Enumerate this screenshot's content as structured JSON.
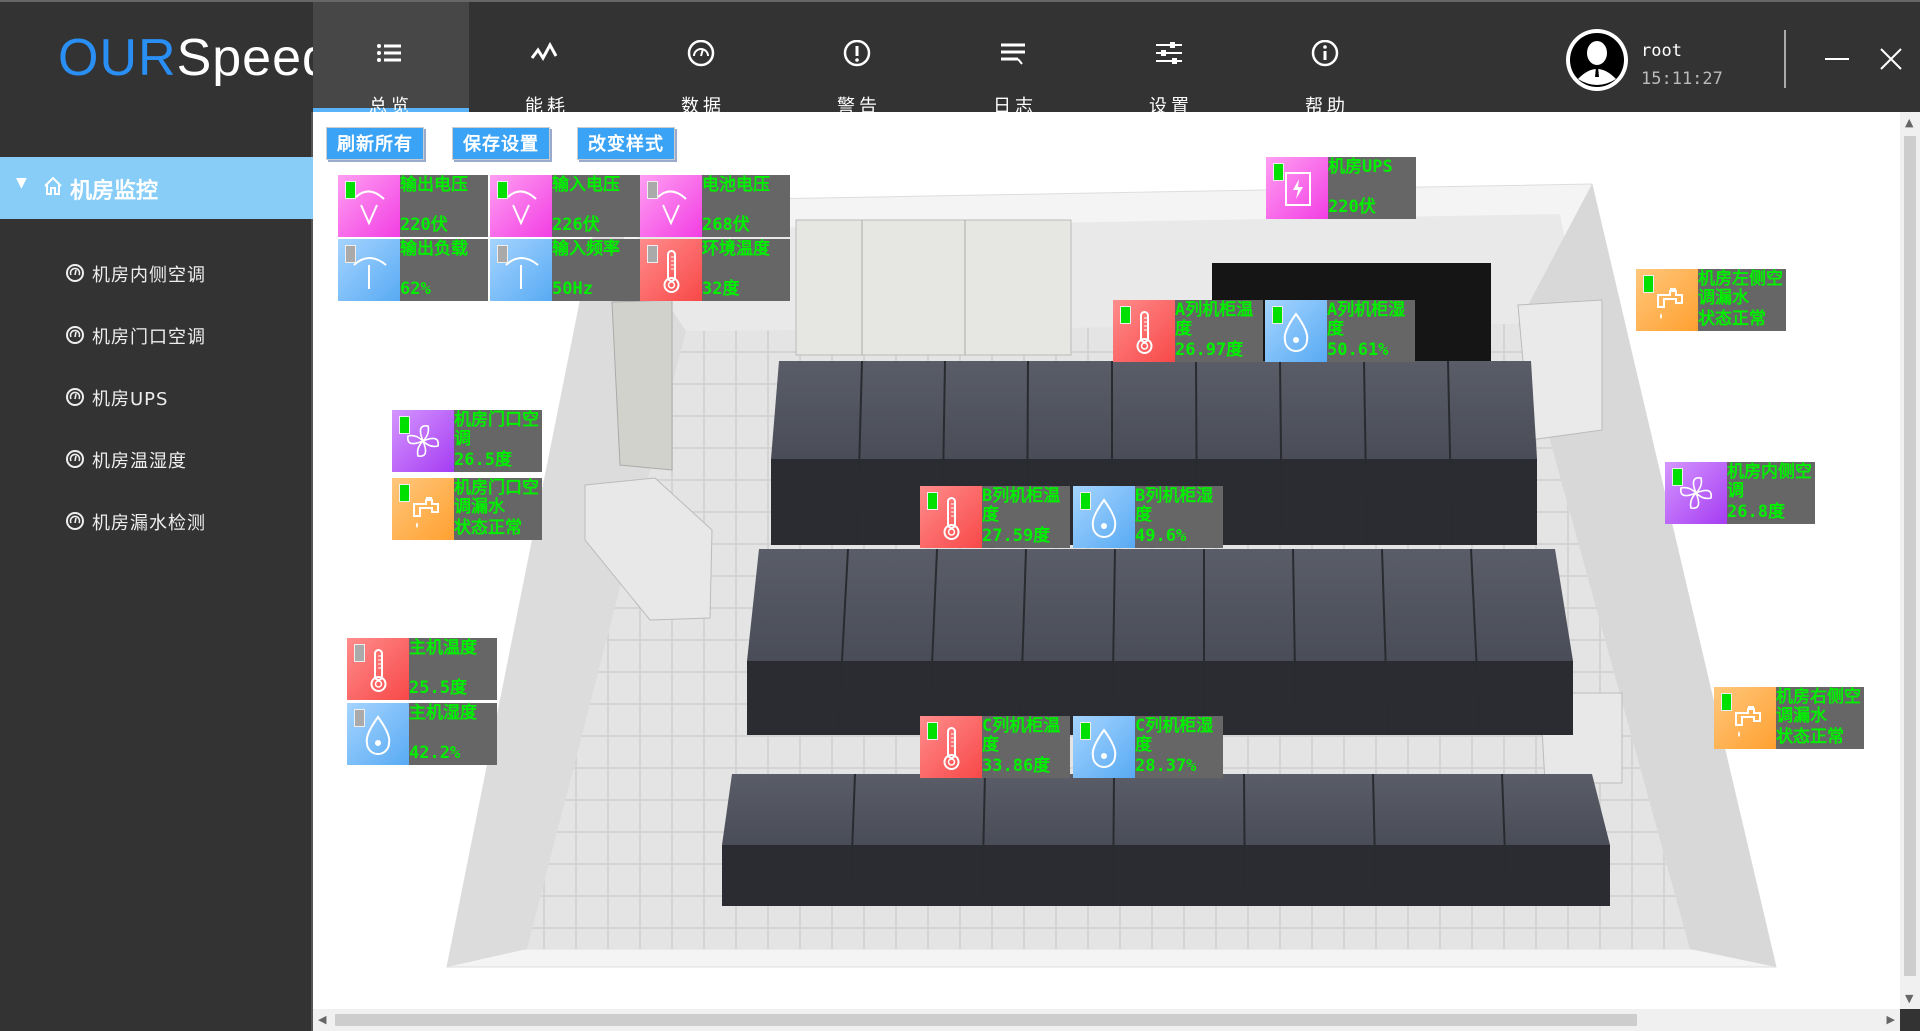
{
  "header": {
    "logo_part1": "OUR",
    "logo_part2": "Speed",
    "tabs": [
      {
        "label": "总览",
        "icon": "list-icon",
        "active": true
      },
      {
        "label": "能耗",
        "icon": "pulse-icon"
      },
      {
        "label": "数据",
        "icon": "gauge-icon"
      },
      {
        "label": "警告",
        "icon": "alert-icon"
      },
      {
        "label": "日志",
        "icon": "log-icon"
      },
      {
        "label": "设置",
        "icon": "sliders-icon"
      },
      {
        "label": "帮助",
        "icon": "info-icon"
      }
    ],
    "user": {
      "name": "root",
      "time": "15:11:27"
    }
  },
  "sidebar": {
    "group": "机房监控",
    "items": [
      {
        "label": "机房内侧空调"
      },
      {
        "label": "机房门口空调"
      },
      {
        "label": "机房UPS"
      },
      {
        "label": "机房温湿度"
      },
      {
        "label": "机房漏水检测"
      }
    ]
  },
  "toolbar": {
    "refresh_label": "刷新所有",
    "save_label": "保存设置",
    "style_label": "改变样式"
  },
  "colors": {
    "accent": "#3ba3f5",
    "sidebar_active": "#87cdf8",
    "value_text": "#00f000",
    "indicator_on": "#00e000",
    "indicator_off": "#aaaaaa"
  },
  "tiles": [
    {
      "id": "output-voltage",
      "label": "输出电压",
      "value": "220伏",
      "type": "voltage",
      "color": "pink",
      "on": true
    },
    {
      "id": "input-voltage",
      "label": "输入电压",
      "value": "226伏",
      "type": "voltage",
      "color": "pink",
      "on": true
    },
    {
      "id": "battery-voltage",
      "label": "电池电压",
      "value": "268伏",
      "type": "voltage",
      "color": "pink",
      "on": false
    },
    {
      "id": "output-load",
      "label": "输出负载",
      "value": "62%",
      "type": "meter",
      "color": "blue",
      "on": false
    },
    {
      "id": "input-frequency",
      "label": "输入频率",
      "value": "50Hz",
      "type": "meter",
      "color": "blue",
      "on": false
    },
    {
      "id": "ambient-temp",
      "label": "环境温度",
      "value": "32度",
      "type": "thermo",
      "color": "red",
      "on": false
    },
    {
      "id": "room-ups",
      "label": "机房UPS",
      "value": "220伏",
      "type": "ups",
      "color": "pink",
      "on": true
    },
    {
      "id": "row-a-temp",
      "label": "A列机柜温度",
      "value": "26.97度",
      "type": "thermo",
      "color": "red",
      "on": true
    },
    {
      "id": "row-a-humidity",
      "label": "A列机柜湿度",
      "value": "50.61%",
      "type": "drop",
      "color": "blue",
      "on": true
    },
    {
      "id": "left-ac-leak",
      "label": "机房左侧空调漏水",
      "value": "状态正常",
      "type": "tap",
      "color": "orange",
      "on": true
    },
    {
      "id": "door-ac",
      "label": "机房门口空调",
      "value": "26.5度",
      "type": "fan",
      "color": "purple",
      "on": true
    },
    {
      "id": "door-ac-leak",
      "label": "机房门口空调漏水",
      "value": "状态正常",
      "type": "tap",
      "color": "orange",
      "on": true
    },
    {
      "id": "inner-ac",
      "label": "机房内侧空调",
      "value": "26.8度",
      "type": "fan",
      "color": "purple",
      "on": true
    },
    {
      "id": "row-b-temp",
      "label": "B列机柜温度",
      "value": "27.59度",
      "type": "thermo",
      "color": "red",
      "on": true
    },
    {
      "id": "row-b-humidity",
      "label": "B列机柜湿度",
      "value": "49.6%",
      "type": "drop",
      "color": "blue",
      "on": true
    },
    {
      "id": "host-temp",
      "label": "主机温度",
      "value": "25.5度",
      "type": "thermo",
      "color": "red",
      "on": false
    },
    {
      "id": "host-humidity",
      "label": "主机湿度",
      "value": "42.2%",
      "type": "drop",
      "color": "blue",
      "on": false
    },
    {
      "id": "right-ac-leak",
      "label": "机房右侧空调漏水",
      "value": "状态正常",
      "type": "tap",
      "color": "orange",
      "on": true
    },
    {
      "id": "row-c-temp",
      "label": "C列机柜温度",
      "value": "33.86度",
      "type": "thermo",
      "color": "red",
      "on": true
    },
    {
      "id": "row-c-humidity",
      "label": "C列机柜湿度",
      "value": "28.37%",
      "type": "drop",
      "color": "blue",
      "on": true
    }
  ]
}
